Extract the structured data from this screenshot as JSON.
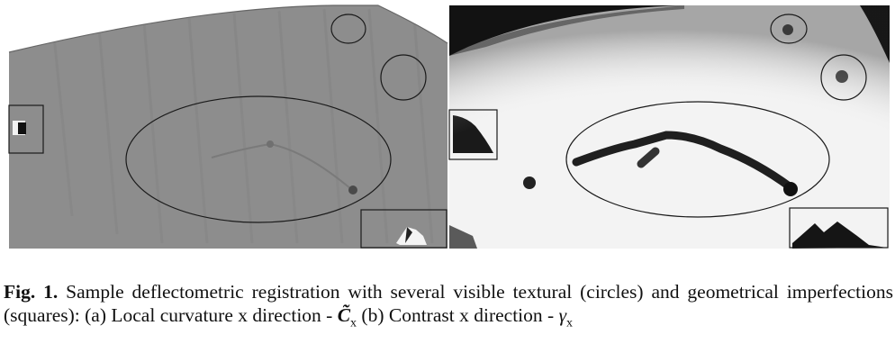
{
  "figure": {
    "panels": [
      {
        "id": "a",
        "description": "local-curvature-x-map"
      },
      {
        "id": "b",
        "description": "contrast-x-map"
      }
    ]
  },
  "caption": {
    "label": "Fig. 1.",
    "text_1": " Sample deflectometric registration with several visible textural (circles) and geometrical imperfections (squares): (a) Local curvature x direction - ",
    "symbol_1": "C̃",
    "symbol_1_sub": "x",
    "text_2": " (b) Contrast x direction - ",
    "symbol_2": "γ",
    "symbol_2_sub": "x"
  }
}
